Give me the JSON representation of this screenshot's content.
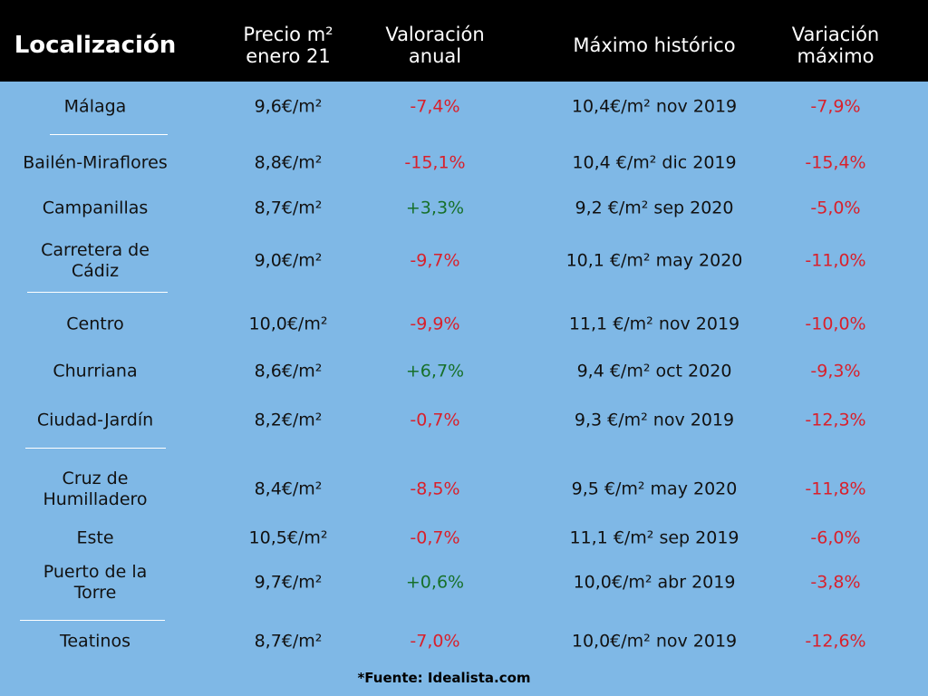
{
  "header": {
    "columns": [
      "Localización",
      "Precio m² enero 21",
      "Valoración anual",
      "Máximo histórico",
      "Variación máximo"
    ]
  },
  "table": {
    "rows": [
      [
        "Málaga",
        "9,6€/m²",
        "-7,4%",
        "10,4€/m² nov 2019",
        "-7,9%"
      ],
      [
        "Bailén-Miraflores",
        "8,8€/m²",
        "-15,1%",
        "10,4 €/m² dic 2019",
        "-15,4%"
      ],
      [
        "Campanillas",
        "8,7€/m²",
        "+3,3%",
        "9,2 €/m² sep 2020",
        "-5,0%"
      ],
      [
        "Carretera de Cádiz",
        "9,0€/m²",
        "-9,7%",
        "10,1 €/m² may 2020",
        "-11,0%"
      ],
      [
        "Centro",
        "10,0€/m²",
        "-9,9%",
        "11,1 €/m² nov 2019",
        "-10,0%"
      ],
      [
        "Churriana",
        "8,6€/m²",
        "+6,7%",
        "9,4 €/m² oct 2020",
        "-9,3%"
      ],
      [
        "Ciudad-Jardín",
        "8,2€/m²",
        "-0,7%",
        "9,3 €/m² nov 2019",
        "-12,3%"
      ],
      [
        "Cruz de Humilladero",
        "8,4€/m²",
        "-8,5%",
        "9,5 €/m² may 2020",
        "-11,8%"
      ],
      [
        "Este",
        "10,5€/m²",
        "-0,7%",
        "11,1 €/m² sep 2019",
        "-6,0%"
      ],
      [
        "Puerto de la Torre",
        "9,7€/m²",
        "+0,6%",
        "10,0€/m² abr 2019",
        "-3,8%"
      ],
      [
        "Teatinos",
        "8,7€/m²",
        "-7,0%",
        "10,0€/m² nov 2019",
        "-12,6%"
      ]
    ]
  },
  "footer": {
    "source": "*Fuente: Idealista.com"
  }
}
